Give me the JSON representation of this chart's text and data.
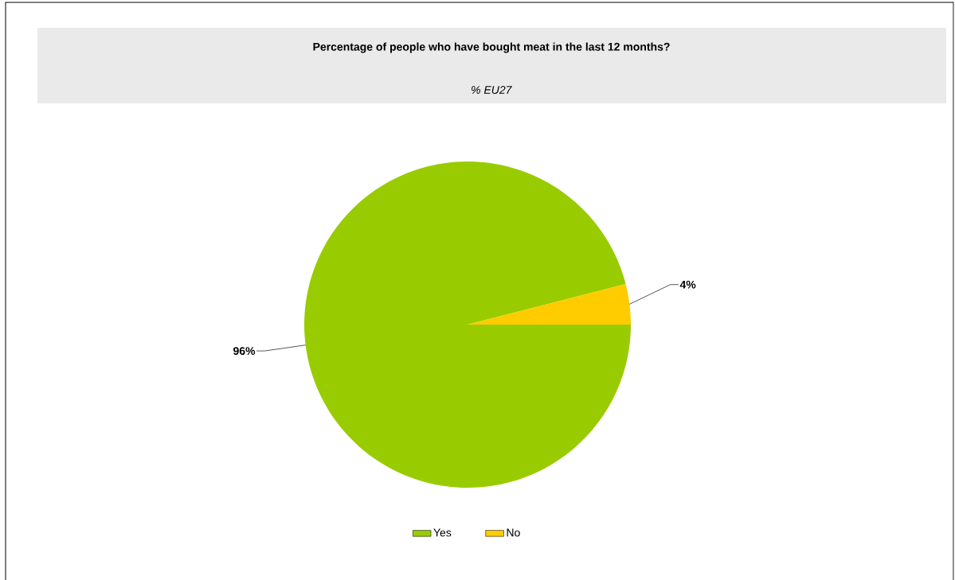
{
  "chart_data": {
    "type": "pie",
    "title": "Percentage of people who have bought meat in the last 12 months?",
    "subtitle": "*% EU27*",
    "categories": [
      "Yes",
      "No"
    ],
    "values": [
      96,
      4
    ],
    "colors": [
      "#99cc00",
      "#ffcc00"
    ],
    "value_labels": [
      "96%",
      "4%"
    ],
    "legend": "bottom"
  }
}
